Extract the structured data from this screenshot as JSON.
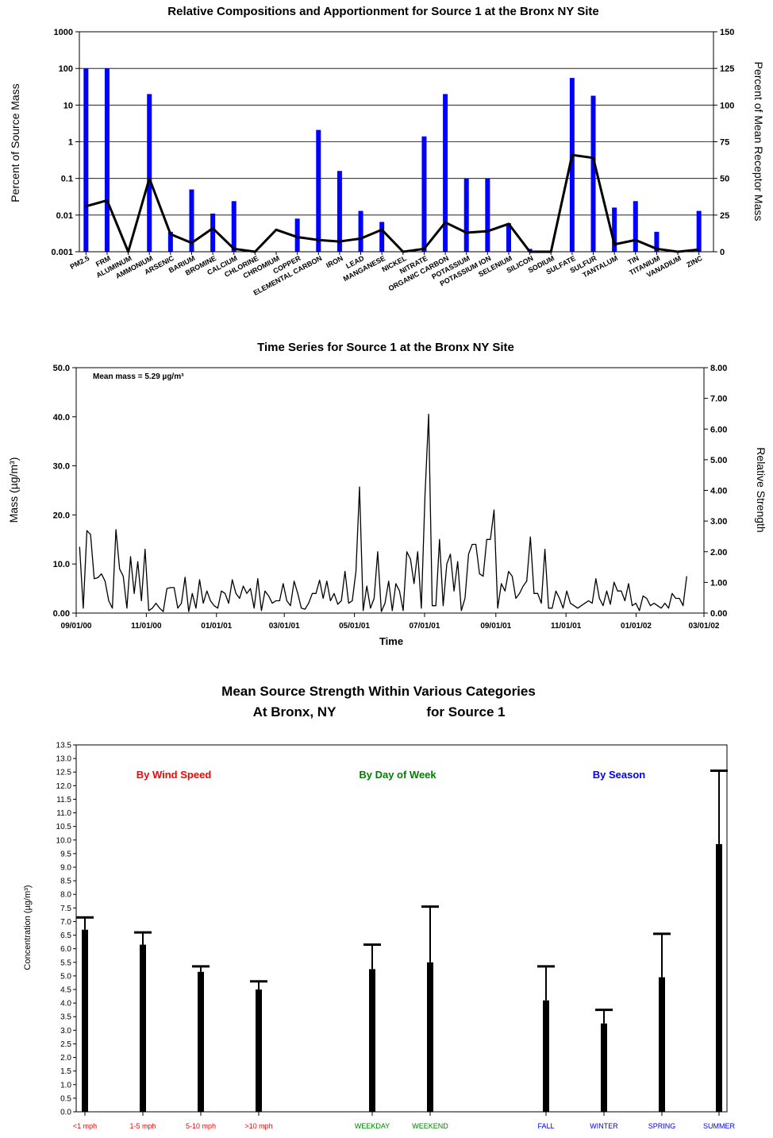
{
  "chart_data": [
    {
      "type": "bar",
      "title": "Relative Compositions and Apportionment for Source 1 at the Bronx NY Site",
      "ylabel": "Percent of Source Mass",
      "y2label": "Percent of Mean Receptor Mass",
      "yscale": "log",
      "ylim": [
        0.001,
        1000
      ],
      "yticks": [
        "0.001",
        "0.01",
        "0.1",
        "1",
        "10",
        "100",
        "1000"
      ],
      "y2lim": [
        0,
        150
      ],
      "y2ticks": [
        "0",
        "25",
        "50",
        "75",
        "100",
        "125",
        "150"
      ],
      "grid": true,
      "categories": [
        "PM2.5",
        "FRM",
        "ALUMINUM",
        "AMMONIUM",
        "ARSENIC",
        "BARIUM",
        "BROMINE",
        "CALCIUM",
        "CHLORINE",
        "CHROMIUM",
        "COPPER",
        "ELEMENTAL CARBON",
        "IRON",
        "LEAD",
        "MANGANESE",
        "NICKEL",
        "NITRATE",
        "ORGANIC CARBON",
        "POTASSIUM",
        "POTASSIUM ION",
        "SELENIUM",
        "SILICON",
        "SODIUM",
        "SULFATE",
        "SULFUR",
        "TANTALUM",
        "TIN",
        "TITANIUM",
        "VANADIUM",
        "ZINC"
      ],
      "series": [
        {
          "values": [
            100,
            100,
            0.001,
            20,
            0.0035,
            0.05,
            0.011,
            0.024,
            0.001,
            0.001,
            0.008,
            2.1,
            0.16,
            0.013,
            0.0065,
            0.001,
            1.4,
            20,
            0.1,
            0.1,
            0.006,
            0.0012,
            0.001,
            55,
            18,
            0.016,
            0.024,
            0.0035,
            0.001,
            0.013
          ],
          "color": "#0000ff",
          "axis": "left"
        },
        {
          "values": [
            31,
            35,
            0,
            50,
            12,
            6,
            16,
            2,
            0,
            15,
            10,
            8,
            7,
            9,
            15,
            0,
            2,
            20,
            13,
            14,
            19,
            0,
            0,
            66,
            64,
            5,
            8,
            2,
            0,
            1.5
          ],
          "color": "#000000",
          "axis": "right",
          "kind": "line"
        }
      ]
    },
    {
      "type": "line",
      "title": "Time Series for Source 1 at the Bronx NY Site",
      "xlabel": "Time",
      "ylabel": "Mass (µg/m³)",
      "y2label": "Relative Strength",
      "annotation": "Mean mass = 5.29 µg/m³",
      "ylim": [
        0,
        50
      ],
      "yticks": [
        "0.00",
        "10.0",
        "20.0",
        "30.0",
        "40.0",
        "50.0"
      ],
      "y2lim": [
        0,
        8
      ],
      "y2ticks": [
        "0.00",
        "1.00",
        "2.00",
        "3.00",
        "4.00",
        "5.00",
        "6.00",
        "7.00",
        "8.00"
      ],
      "xlim": [
        "2000-09-01",
        "2002-03-01"
      ],
      "xticks": [
        "09/01/00",
        "11/01/00",
        "01/01/01",
        "03/01/01",
        "05/01/01",
        "07/01/01",
        "09/01/01",
        "11/01/01",
        "01/01/02",
        "03/01/02"
      ],
      "x_start": "2000-09-04",
      "x_end": "2002-02-14",
      "values": [
        13.5,
        1.0,
        16.8,
        16.0,
        7.0,
        7.2,
        8.0,
        6.5,
        2.5,
        1.0,
        17.0,
        9.0,
        7.5,
        1.0,
        11.5,
        4.0,
        10.5,
        2.5,
        13.0,
        0.5,
        1.0,
        2.0,
        1.0,
        0.3,
        5.0,
        5.2,
        5.2,
        1.0,
        2.0,
        7.3,
        0.3,
        4.0,
        1.0,
        6.8,
        2.0,
        4.5,
        2.5,
        1.5,
        1.0,
        4.5,
        4.0,
        2.0,
        6.8,
        4.0,
        3.0,
        5.5,
        4.0,
        5.0,
        1.0,
        7.0,
        0.5,
        4.5,
        3.5,
        2.0,
        2.5,
        2.5,
        6.0,
        2.5,
        1.5,
        6.5,
        4.0,
        1.0,
        0.8,
        2.0,
        4.0,
        4.0,
        6.7,
        3.0,
        6.5,
        2.5,
        4.0,
        1.8,
        2.5,
        8.5,
        2.0,
        2.5,
        8.5,
        25.7,
        0.5,
        5.5,
        1.0,
        3.0,
        12.5,
        0.3,
        2.0,
        6.5,
        0.5,
        6.0,
        4.5,
        0.5,
        12.5,
        11.0,
        6.0,
        12.5,
        1.0,
        24.0,
        40.5,
        1.5,
        1.5,
        15.0,
        1.5,
        10.0,
        12.0,
        4.5,
        10.5,
        0.5,
        3.0,
        12.0,
        14.0,
        14.0,
        8.0,
        7.5,
        15.0,
        15.0,
        21.0,
        1.0,
        6.0,
        4.5,
        8.5,
        7.5,
        3.0,
        4.0,
        5.5,
        6.5,
        15.5,
        4.0,
        4.0,
        2.0,
        13.0,
        1.0,
        1.0,
        4.5,
        3.0,
        1.0,
        4.5,
        2.0,
        1.5,
        1.0,
        1.5,
        2.0,
        2.5,
        2.0,
        7.0,
        3.0,
        1.5,
        4.5,
        1.8,
        6.3,
        4.5,
        4.5,
        2.5,
        6.0,
        1.5,
        2.0,
        0.5,
        3.5,
        3.0,
        1.5,
        2.0,
        1.5,
        1.0,
        2.0,
        1.0,
        4.0,
        3.0,
        3.0,
        1.5,
        7.5
      ]
    },
    {
      "type": "bar",
      "title": "Mean Source Strength Within Various Categories",
      "subtitle_left": "At Bronx, NY",
      "subtitle_right": "for Source 1",
      "ylabel": "Concentration (µg/m³)",
      "ylim": [
        0,
        13.5
      ],
      "yticks": [
        "0.0",
        "0.5",
        "1.0",
        "1.5",
        "2.0",
        "2.5",
        "3.0",
        "3.5",
        "4.0",
        "4.5",
        "5.0",
        "5.5",
        "6.0",
        "6.5",
        "7.0",
        "7.5",
        "8.0",
        "8.5",
        "9.0",
        "9.5",
        "10.0",
        "10.5",
        "11.0",
        "11.5",
        "12.0",
        "12.5",
        "13.0",
        "13.5"
      ],
      "groups": [
        {
          "label": "By Wind Speed",
          "color": "#ff0000",
          "categories": [
            "<1 mph",
            "1-5 mph",
            "5-10 mph",
            ">10 mph"
          ],
          "values": [
            6.7,
            6.15,
            5.15,
            4.5
          ],
          "upper": [
            7.15,
            6.6,
            5.35,
            4.8
          ]
        },
        {
          "label": "By Day of Week",
          "color": "#008000",
          "categories": [
            "WEEKDAY",
            "WEEKEND"
          ],
          "values": [
            5.25,
            5.5
          ],
          "upper": [
            6.15,
            7.55
          ]
        },
        {
          "label": "By Season",
          "color": "#0000ff",
          "categories": [
            "FALL",
            "WINTER",
            "SPRING",
            "SUMMER"
          ],
          "values": [
            4.1,
            3.25,
            4.95,
            9.85
          ],
          "upper": [
            5.35,
            3.75,
            6.55,
            12.55
          ]
        }
      ]
    }
  ]
}
